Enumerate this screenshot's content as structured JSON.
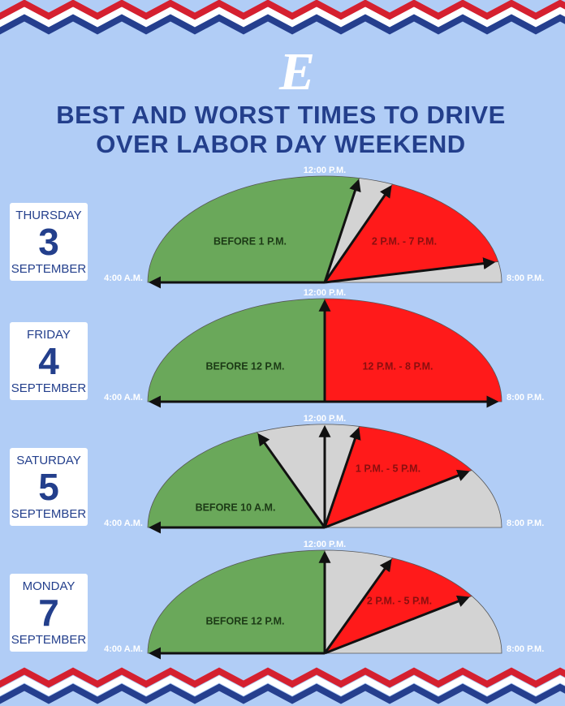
{
  "logo": "E",
  "title": [
    "BEST AND WORST TIMES TO DRIVE",
    "OVER LABOR DAY WEEKEND"
  ],
  "days": [
    {
      "weekday": "THURSDAY",
      "day": "3",
      "month": "SEPTEMBER",
      "best": "BEFORE 1 P.M.",
      "worst": "2 P.M. - 7 P.M.",
      "start": "4:00 A.M.",
      "noon": "12:00 P.M.",
      "end": "8:00 P.M."
    },
    {
      "weekday": "FRIDAY",
      "day": "4",
      "month": "SEPTEMBER",
      "best": "BEFORE 12 P.M.",
      "worst": "12 P.M. - 8 P.M.",
      "start": "4:00 A.M.",
      "noon": "12:00 P.M.",
      "end": "8:00 P.M."
    },
    {
      "weekday": "SATURDAY",
      "day": "5",
      "month": "SEPTEMBER",
      "best": "BEFORE 10 A.M.",
      "worst": "1 P.M. - 5 P.M.",
      "start": "4:00 A.M.",
      "noon": "12:00 P.M.",
      "end": "8:00 P.M."
    },
    {
      "weekday": "MONDAY",
      "day": "7",
      "month": "SEPTEMBER",
      "best": "BEFORE 12 P.M.",
      "worst": "2 P.M. - 5 P.M.",
      "start": "4:00 A.M.",
      "noon": "12:00 P.M.",
      "end": "8:00 P.M."
    }
  ]
}
